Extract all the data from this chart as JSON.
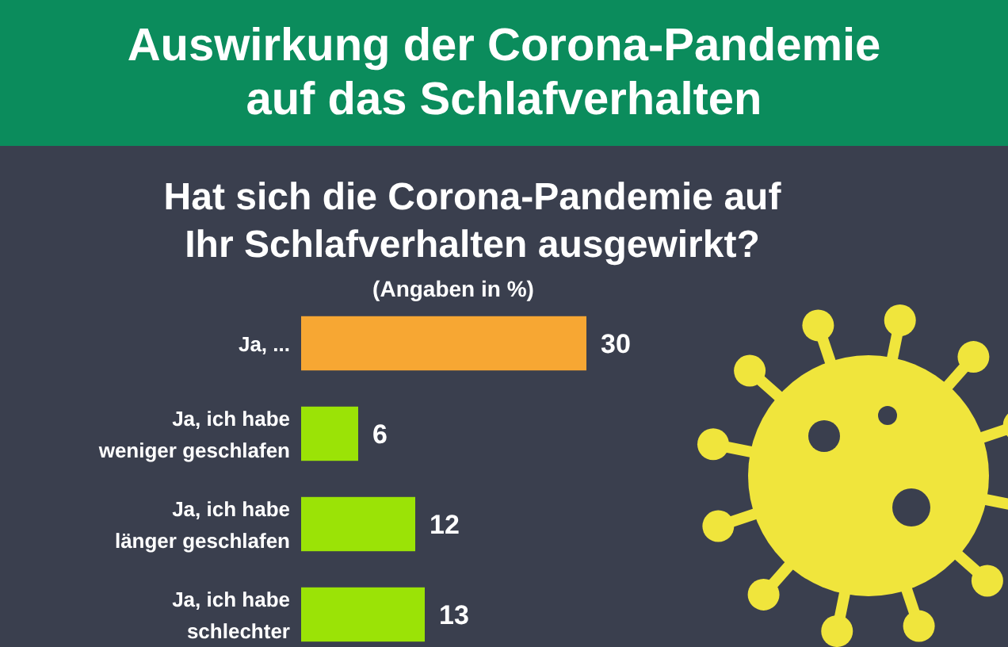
{
  "chart_data": {
    "type": "bar",
    "orientation": "horizontal",
    "title": "Auswirkung der Corona-Pandemie auf das Schlafverhalten",
    "subtitle": "Hat sich die Corona-Pandemie auf Ihr Schlafverhalten ausgewirkt?",
    "annotations": [
      "(Angaben in %)"
    ],
    "categories": [
      "Ja, ...",
      "Ja, ich habe weniger geschlafen",
      "Ja, ich habe länger geschlafen",
      "Ja, ich habe schlechter"
    ],
    "values": [
      30,
      6,
      12,
      13
    ],
    "colors": [
      "#f7a733",
      "#9be306",
      "#9be306",
      "#9be306"
    ],
    "data_labels": true
  }
}
